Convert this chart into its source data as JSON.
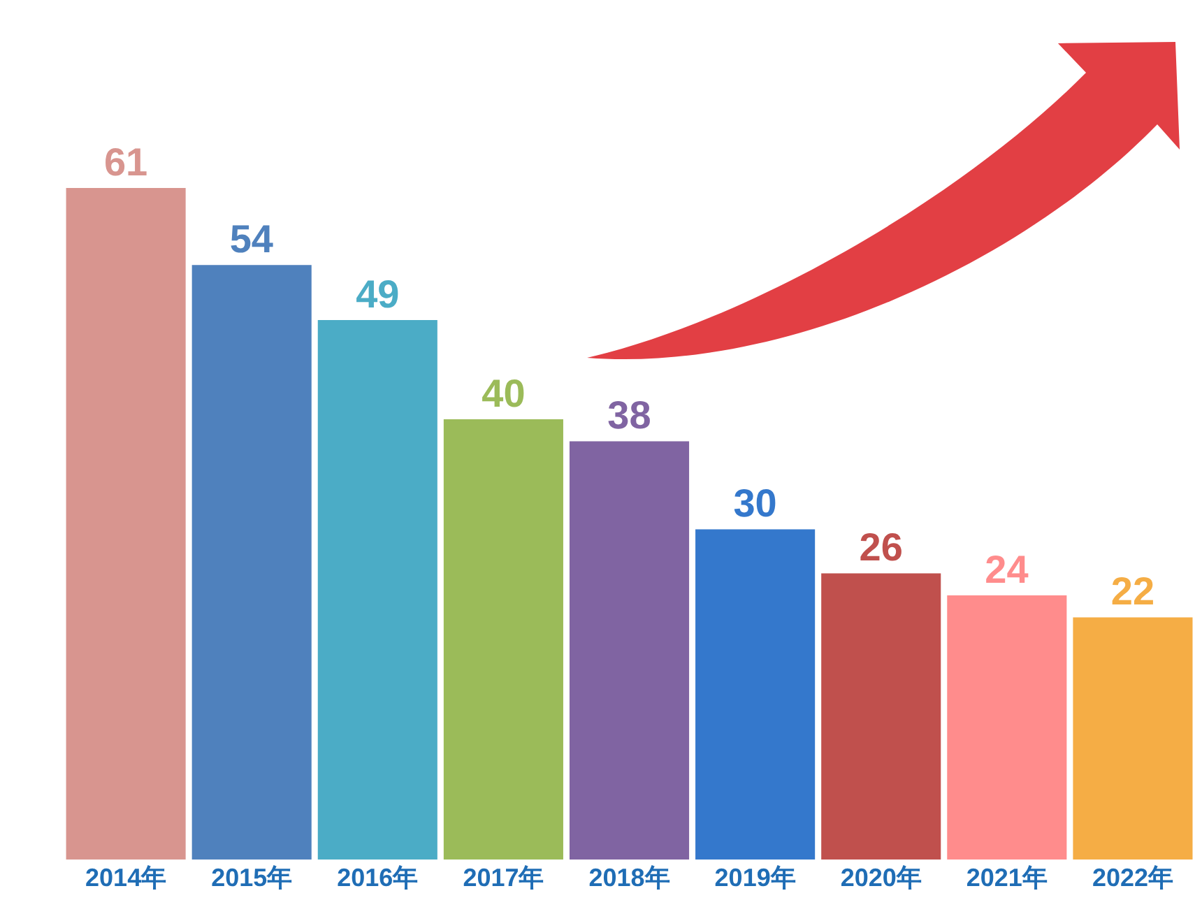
{
  "chart_data": {
    "type": "bar",
    "categories": [
      "2014年",
      "2015年",
      "2016年",
      "2017年",
      "2018年",
      "2019年",
      "2020年",
      "2021年",
      "2022年"
    ],
    "values": [
      61,
      54,
      49,
      40,
      38,
      30,
      26,
      24,
      22
    ],
    "colors": [
      "#d8958f",
      "#4f81bd",
      "#4bacc6",
      "#9bbb59",
      "#8064a2",
      "#3478cc",
      "#c0504d",
      "#ff8c8c",
      "#f5ad45"
    ],
    "data_labels": true
  }
}
